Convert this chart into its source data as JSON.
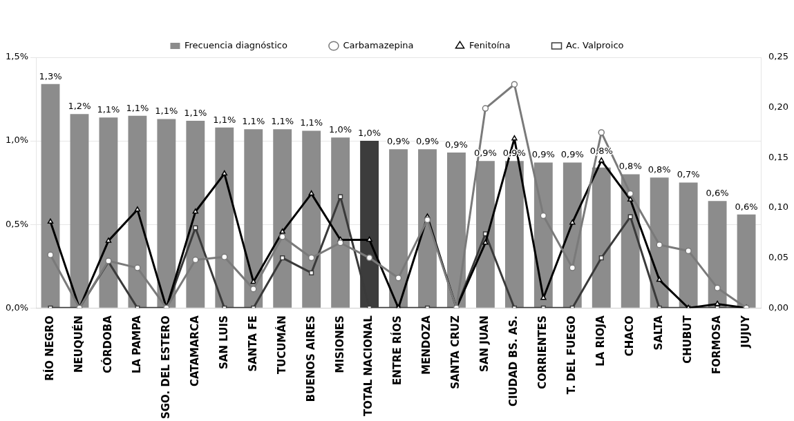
{
  "chart_data": {
    "type": "bar",
    "categories": [
      "RÍO NEGRO",
      "NEUQUÉN",
      "CÓRDOBA",
      "LA PAMPA",
      "SGO. DEL ESTERO",
      "CATAMARCA",
      "SAN LUIS",
      "SANTA FE",
      "TUCUMÁN",
      "BUENOS AIRES",
      "MISIONES",
      "TOTAL NACIONAL",
      "ENTRE RÍOS",
      "MENDOZA",
      "SANTA CRUZ",
      "SAN JUAN",
      "CIUDAD BS. AS.",
      "CORRIENTES",
      "T. DEL FUEGO",
      "LA RIOJA",
      "CHACO",
      "SALTA",
      "CHUBUT",
      "FORMOSA",
      "JUJUY"
    ],
    "series": [
      {
        "name": "Frecuencia diagnóstico",
        "color": "#8c8c8c",
        "colors": [
          "#8c8c8c",
          "#8c8c8c",
          "#8c8c8c",
          "#8c8c8c",
          "#8c8c8c",
          "#8c8c8c",
          "#8c8c8c",
          "#8c8c8c",
          "#8c8c8c",
          "#8c8c8c",
          "#8c8c8c",
          "#3c3c3c",
          "#8c8c8c",
          "#8c8c8c",
          "#8c8c8c",
          "#8c8c8c",
          "#8c8c8c",
          "#8c8c8c",
          "#8c8c8c",
          "#8c8c8c",
          "#8c8c8c",
          "#8c8c8c",
          "#8c8c8c",
          "#8c8c8c",
          "#8c8c8c"
        ],
        "values": [
          1.34,
          1.16,
          1.14,
          1.15,
          1.13,
          1.12,
          1.08,
          1.07,
          1.07,
          1.06,
          1.02,
          1.0,
          0.95,
          0.95,
          0.93,
          0.88,
          0.88,
          0.87,
          0.87,
          0.84,
          0.8,
          0.78,
          0.75,
          0.64,
          0.56
        ],
        "value_labels": [
          "1,3%",
          "1,2%",
          "1,1%",
          "1,1%",
          "1,1%",
          "1,1%",
          "1,1%",
          "1,1%",
          "1,1%",
          "1,1%",
          "1,0%",
          "1,0%",
          "0,9%",
          "0,9%",
          "0,9%",
          "0,9%",
          "0,9%",
          "0,9%",
          "0,9%",
          "0,8%",
          "0,8%",
          "0,8%",
          "0,7%",
          "0,6%",
          "0,6%"
        ]
      },
      {
        "name": "Carbamazepina",
        "type": "line",
        "axis": "y2",
        "color": "#7a7a7a",
        "marker": "circle",
        "values": [
          0.053,
          0,
          0.047,
          0.04,
          0,
          0.048,
          0.051,
          0.019,
          0.071,
          0.05,
          0.065,
          0.05,
          0.03,
          0.088,
          0,
          0.199,
          0.223,
          0.092,
          0.04,
          0.175,
          0.114,
          0.063,
          0.057,
          0.02,
          0
        ]
      },
      {
        "name": "Fenitoína",
        "type": "line",
        "axis": "y2",
        "color": "#000000",
        "marker": "triangle",
        "values": [
          0.086,
          0,
          0.067,
          0.098,
          0,
          0.096,
          0.134,
          0.026,
          0.076,
          0.114,
          0.068,
          0.068,
          0,
          0.091,
          0,
          0.065,
          0.169,
          0.01,
          0.085,
          0.147,
          0.108,
          0.028,
          0,
          0.004,
          0
        ]
      },
      {
        "name": "Ac. Valproico",
        "type": "line",
        "axis": "y2",
        "color": "#3a3a3a",
        "marker": "square",
        "values": [
          0,
          0,
          0.046,
          0,
          0,
          0.08,
          0,
          0,
          0.05,
          0.035,
          0.111,
          0,
          0,
          0,
          0,
          0.074,
          0,
          0,
          0,
          0.05,
          0.091,
          0,
          0,
          0,
          0
        ]
      }
    ],
    "ylim": [
      0,
      1.5
    ],
    "yticks": [
      {
        "value": 0,
        "label": "0,0%"
      },
      {
        "value": 0.5,
        "label": "0,5%"
      },
      {
        "value": 1,
        "label": "1,0%"
      },
      {
        "value": 1.5,
        "label": "1,5%"
      }
    ],
    "y2lim": [
      0,
      0.25
    ],
    "y2ticks": [
      {
        "value": 0,
        "label": "0,00"
      },
      {
        "value": 0.05,
        "label": "0,05"
      },
      {
        "value": 0.1,
        "label": "0,10"
      },
      {
        "value": 0.15,
        "label": "0,15"
      },
      {
        "value": 0.2,
        "label": "0,20"
      },
      {
        "value": 0.25,
        "label": "0,25"
      }
    ],
    "grid": "y",
    "legend": "top",
    "line_style": "solid"
  }
}
